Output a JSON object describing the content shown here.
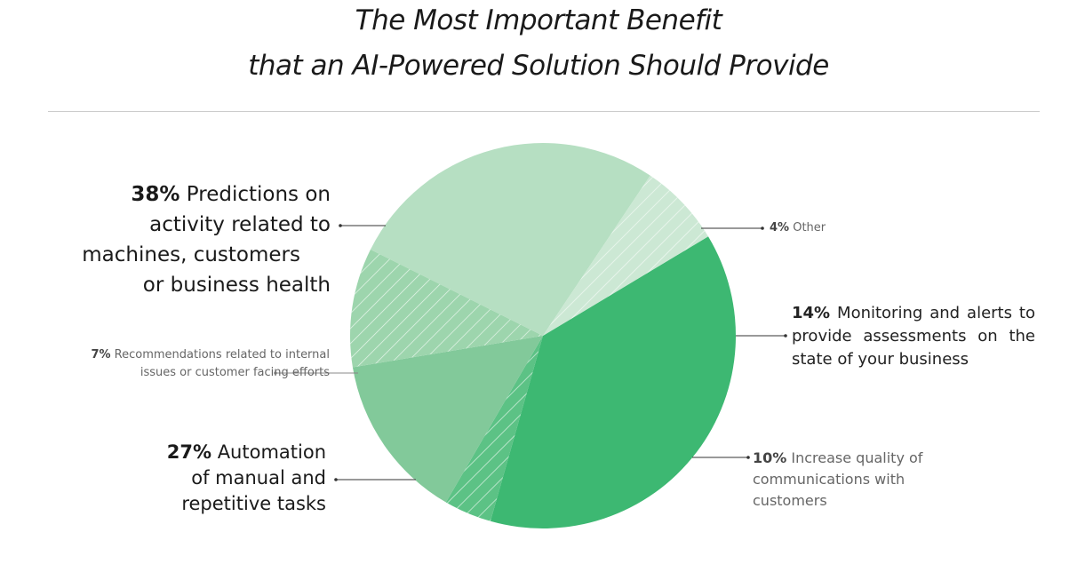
{
  "title_line1": "The Most Important Benefit",
  "title_line2": "that an AI-Powered Solution Should Provide",
  "chart_data": {
    "type": "pie",
    "title": "The Most Important Benefit that an AI-Powered Solution Should Provide",
    "slices": [
      {
        "pct": "38%",
        "value": 38,
        "label": "Predictions on activity related to machines, customers or business health",
        "color": "#3db872",
        "hatched": false
      },
      {
        "pct": "4%",
        "value": 4,
        "label": "Other",
        "color": "#5cc285",
        "hatched": true
      },
      {
        "pct": "14%",
        "value": 14,
        "label": "Monitoring and alerts to provide assessments on the state of your business",
        "color": "#82c99a",
        "hatched": false
      },
      {
        "pct": "10%",
        "value": 10,
        "label": "Increase quality of communications with customers",
        "color": "#9dd5ad",
        "hatched": true
      },
      {
        "pct": "27%",
        "value": 27,
        "label": "Automation of manual and repetitive tasks",
        "color": "#b6dfc2",
        "hatched": false
      },
      {
        "pct": "7%",
        "value": 7,
        "label": "Recommendations  related to internal issues or customer facing efforts",
        "color": "#cce8d4",
        "hatched": true
      }
    ]
  },
  "labels": {
    "predictions": {
      "pct": "38%",
      "l1": " Predictions on",
      "l2": "activity related to",
      "l3": "machines, customers",
      "l4": "or business health"
    },
    "other": {
      "pct": "4%",
      "text": " Other"
    },
    "monitoring": {
      "pct": "14%",
      "l1": " Monitoring and alerts to",
      "l2": "provide assessments on the",
      "l3": "state of your business"
    },
    "communications": {
      "pct": "10%",
      "l1": " Increase quality of",
      "l2": "communications with",
      "l3": "customers"
    },
    "automation": {
      "pct": "27%",
      "l1": " Automation",
      "l2": "of manual and",
      "l3": "repetitive tasks"
    },
    "recommendations": {
      "pct": "7%",
      "l1": " Recommendations  related to internal",
      "l2": "issues or customer facing efforts"
    }
  }
}
